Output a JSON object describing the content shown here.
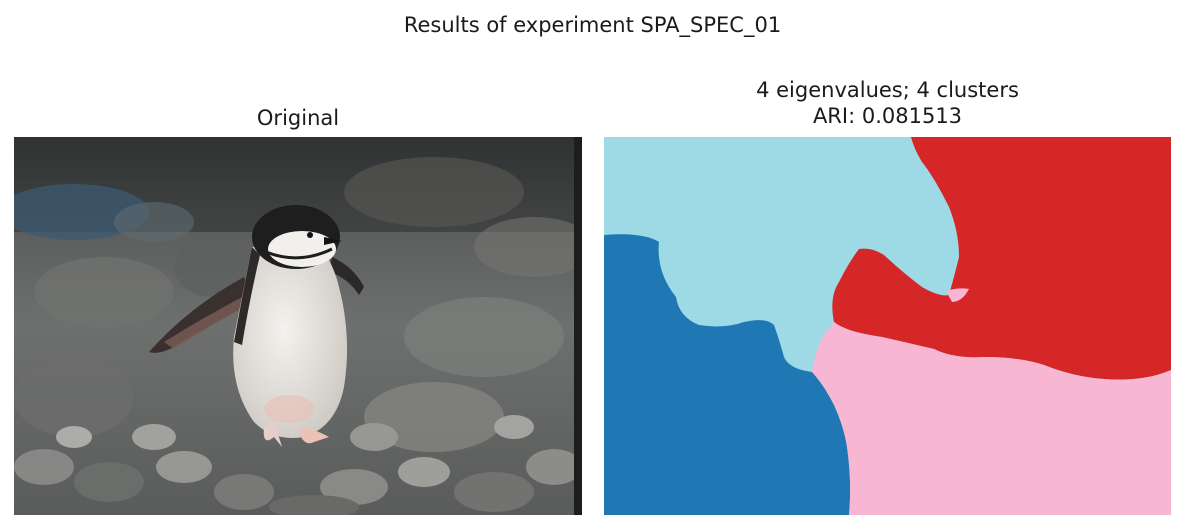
{
  "figure": {
    "suptitle": "Results of experiment SPA_SPEC_01"
  },
  "panels": {
    "original": {
      "title": "Original",
      "image_subject": "penguin"
    },
    "segmentation": {
      "title_line1": "4 eigenvalues; 4 clusters",
      "title_line2": "ARI: 0.081513",
      "cluster_colors": [
        "#1f77b4",
        "#9edae5",
        "#d62728",
        "#f7b6d2"
      ]
    }
  }
}
